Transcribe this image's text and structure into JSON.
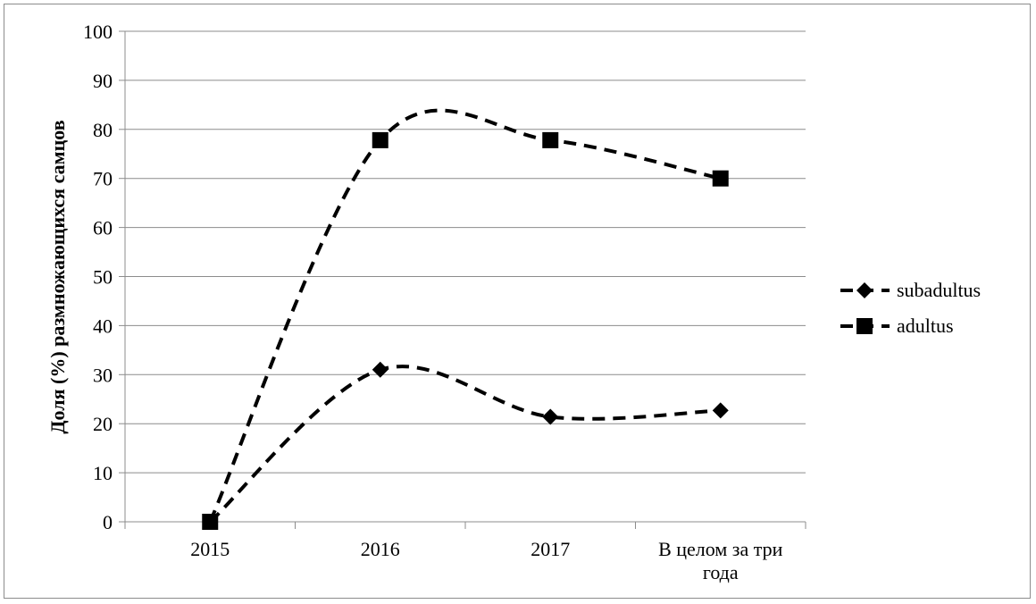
{
  "chart_data": {
    "type": "line",
    "title": "",
    "xlabel": "",
    "ylabel": "Доля (%) размножающихся самцов",
    "categories": [
      [
        "2015"
      ],
      [
        "2016"
      ],
      [
        "2017"
      ],
      [
        "В целом за три",
        "года"
      ]
    ],
    "ylim": [
      0,
      100
    ],
    "yticks": [
      0,
      10,
      20,
      30,
      40,
      50,
      60,
      70,
      80,
      90,
      100
    ],
    "grid": "horizontal",
    "legend_position": "right",
    "series": [
      {
        "name": "subadultus",
        "marker": "diamond",
        "line_style": "dashed",
        "color": "#000000",
        "values": [
          0,
          31,
          21.4,
          22.7
        ]
      },
      {
        "name": "adultus",
        "marker": "square",
        "line_style": "dashed",
        "color": "#000000",
        "values": [
          0,
          77.8,
          77.8,
          70
        ]
      }
    ]
  }
}
